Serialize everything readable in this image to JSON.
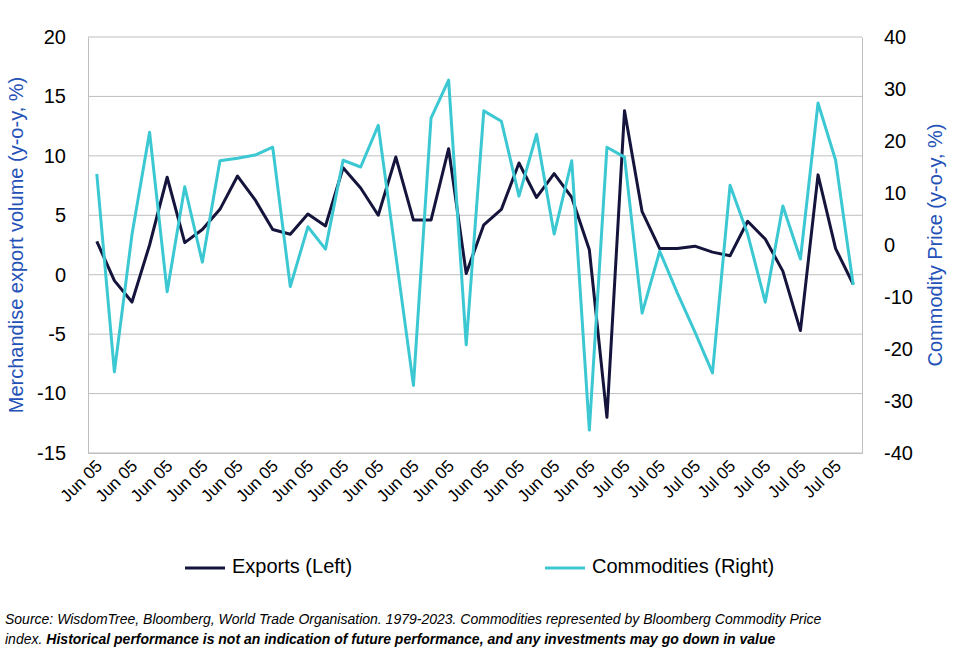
{
  "chart_data": {
    "type": "line",
    "y_label": "Merchandise export volume (y-o-y, %)",
    "y2_label": "Commodity Price (y-o-y, %)",
    "categories": [
      "Jun 05",
      null,
      "Jun 05",
      null,
      "Jun 05",
      null,
      "Jun 05",
      null,
      "Jun 05",
      null,
      "Jun 05",
      null,
      "Jun 05",
      null,
      "Jun 05",
      null,
      "Jun 05",
      null,
      "Jun 05",
      null,
      "Jun 05",
      null,
      "Jun 05",
      null,
      "Jun 05",
      null,
      "Jun 05",
      null,
      "Jun 05",
      null,
      "Jul 05",
      null,
      "Jul 05",
      null,
      "Jul 05",
      null,
      "Jul 05",
      null,
      "Jul 05",
      null,
      "Jul 05",
      null,
      "Jul 05",
      null
    ],
    "series": [
      {
        "name": "Exports (Left)",
        "color": "#14143c",
        "axis": "y",
        "values": [
          2.8,
          -0.5,
          -2.3,
          2.5,
          8.2,
          2.7,
          3.8,
          5.5,
          8.3,
          6.3,
          3.8,
          3.4,
          5.1,
          4.1,
          9.0,
          7.3,
          5.0,
          9.9,
          4.6,
          4.6,
          10.6,
          0.1,
          4.2,
          5.5,
          9.4,
          6.5,
          8.5,
          6.5,
          2.1,
          -12.0,
          13.8,
          5.3,
          2.2,
          2.2,
          2.4,
          1.9,
          1.6,
          4.5,
          3.0,
          0.3,
          -4.7,
          8.4,
          2.2,
          -0.8
        ]
      },
      {
        "name": "Commodities (Right)",
        "color": "#3cc8d2",
        "axis": "y2",
        "values": [
          13.7,
          -24.4,
          2,
          21.7,
          -9,
          11.2,
          -3.3,
          16.2,
          16.7,
          17.3,
          18.8,
          -8,
          3.5,
          -0.8,
          16.3,
          15,
          23,
          -2,
          -27,
          24.4,
          31.7,
          -19.2,
          25.8,
          23.8,
          9.4,
          21.3,
          2.1,
          16.2,
          -35.6,
          18.8,
          16.9,
          -13.1,
          -1.2,
          -9.2,
          -16.7,
          -24.6,
          11.5,
          2.1,
          -11,
          7.5,
          -2.7,
          27.3,
          16.3,
          -7.7
        ]
      }
    ],
    "ylim": [
      -15,
      20
    ],
    "yticks": [
      -15,
      -10,
      -5,
      0,
      5,
      10,
      15,
      20
    ],
    "y2lim": [
      -40,
      40
    ],
    "y2ticks": [
      -40,
      -30,
      -20,
      -10,
      0,
      10,
      20,
      30,
      40
    ],
    "grid": true,
    "legend": "bottom",
    "source": [
      "Source: WisdomTree, Bloomberg, World Trade Organisation. 1979-2023. Commodities represented by Bloomberg Commodity Price",
      "index."
    ],
    "disclaimer": "Historical performance is not an indication of future performance, and any investments may go down in value"
  }
}
